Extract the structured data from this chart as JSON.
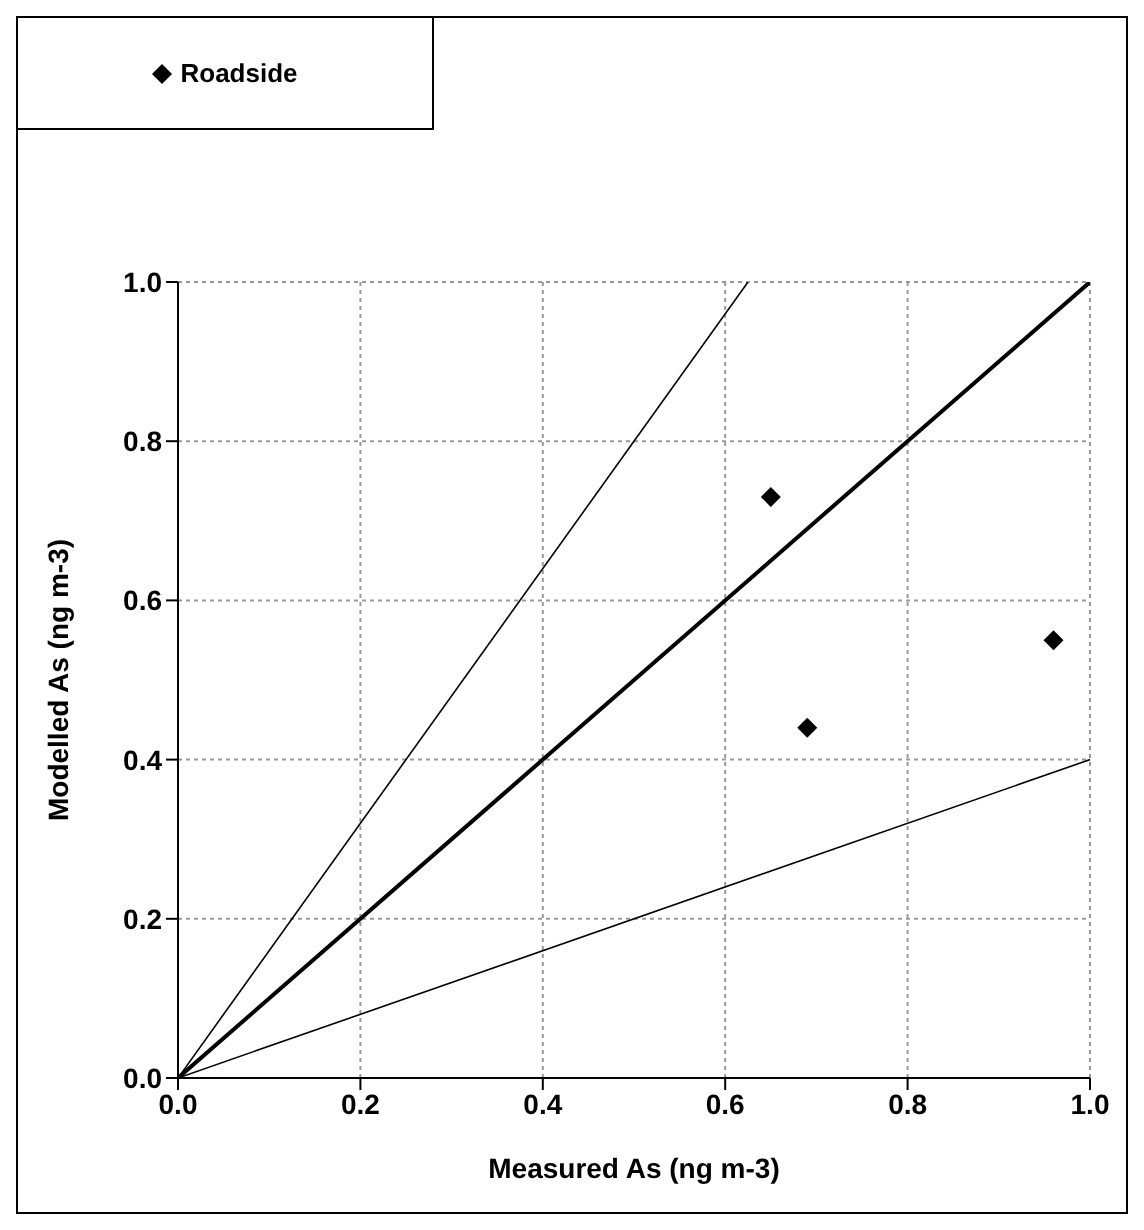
{
  "chart_data": {
    "type": "scatter",
    "xlabel": "Measured As (ng m-3)",
    "ylabel": "Modelled As (ng m-3)",
    "xlim": [
      0,
      1
    ],
    "ylim": [
      0,
      1
    ],
    "xticks": [
      {
        "value": 0,
        "label": "0.0"
      },
      {
        "value": 0.2,
        "label": "0.2"
      },
      {
        "value": 0.4,
        "label": "0.4"
      },
      {
        "value": 0.6,
        "label": "0.6"
      },
      {
        "value": 0.8,
        "label": "0.8"
      },
      {
        "value": 1,
        "label": "1.0"
      }
    ],
    "yticks": [
      {
        "value": 0,
        "label": "0.0"
      },
      {
        "value": 0.2,
        "label": "0.2"
      },
      {
        "value": 0.4,
        "label": "0.4"
      },
      {
        "value": 0.6,
        "label": "0.6"
      },
      {
        "value": 0.8,
        "label": "0.8"
      },
      {
        "value": 1,
        "label": "1.0"
      }
    ],
    "grid": true,
    "legend": "top left",
    "marker": "diamond",
    "series": [
      {
        "name": "Roadside",
        "color": "#000000",
        "x": [
          0.65,
          0.69,
          0.96
        ],
        "values": [
          0.73,
          0.44,
          0.55
        ]
      },
      {
        "type": "line",
        "marker": "none",
        "color": "#000000",
        "x": [
          0,
          1
        ],
        "values": [
          0,
          1
        ]
      },
      {
        "type": "line",
        "marker": "none",
        "color": "#000000",
        "x": [
          0,
          0.625
        ],
        "values": [
          0,
          1
        ]
      },
      {
        "type": "line",
        "marker": "none",
        "color": "#000000",
        "x": [
          0,
          1
        ],
        "values": [
          0,
          0.4
        ]
      }
    ]
  }
}
